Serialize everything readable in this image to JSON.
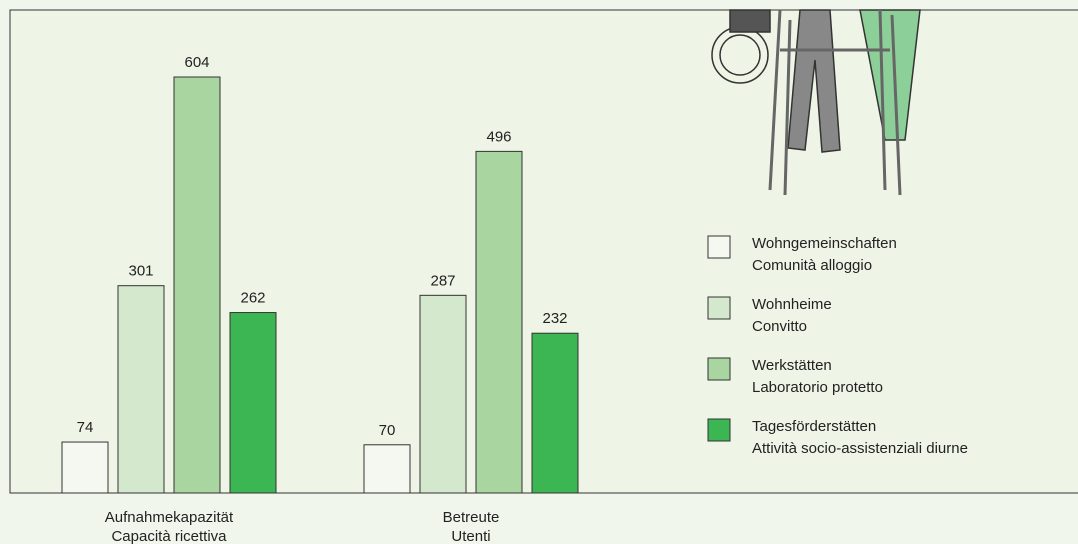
{
  "chart_data": {
    "type": "bar",
    "categories": [
      [
        "Aufnahmekapazität",
        "Capacità ricettiva"
      ],
      [
        "Betreute",
        "Utenti"
      ]
    ],
    "series": [
      {
        "name": [
          "Wohngemeinschaften",
          "Comunità alloggio"
        ],
        "color": "#f4f8f0",
        "values": [
          74,
          70
        ]
      },
      {
        "name": [
          "Wohnheime",
          "Convitto"
        ],
        "color": "#d3e8cc",
        "values": [
          301,
          287
        ]
      },
      {
        "name": [
          "Werkstätten",
          "Laboratorio protetto"
        ],
        "color": "#a8d5a0",
        "values": [
          604,
          496
        ]
      },
      {
        "name": [
          "Tagesförderstätten",
          "Attività socio-assistenziali diurne"
        ],
        "color": "#3cb553",
        "values": [
          262,
          232
        ]
      }
    ]
  }
}
